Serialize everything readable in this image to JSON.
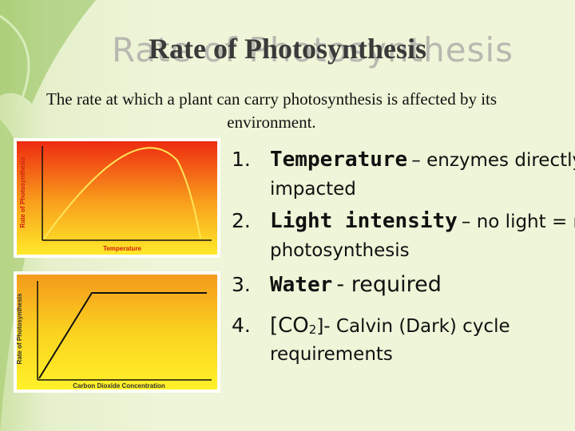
{
  "title": "Rate of Photosynthesis",
  "intro": "The rate at which a plant can carry photosynthesis is affected by its environment.",
  "graphs": [
    {
      "y_label": "Rate of Photosynthesis",
      "x_label": "Temperature"
    },
    {
      "y_label": "Rate of Photosynthesis",
      "x_label": "Carbon Dioxide Concentration"
    }
  ],
  "list": [
    {
      "number": "1.",
      "term": "Temperature",
      "text": "– enzymes directly impacted"
    },
    {
      "number": "2.",
      "term": "Light intensity",
      "text": "– no light = no photosynthesis"
    },
    {
      "number": "3.",
      "term": "Water",
      "text": "- required"
    },
    {
      "number": "4.",
      "term": "[CO",
      "subscript": "2",
      "text": "]- Calvin (Dark) cycle requirements"
    }
  ]
}
